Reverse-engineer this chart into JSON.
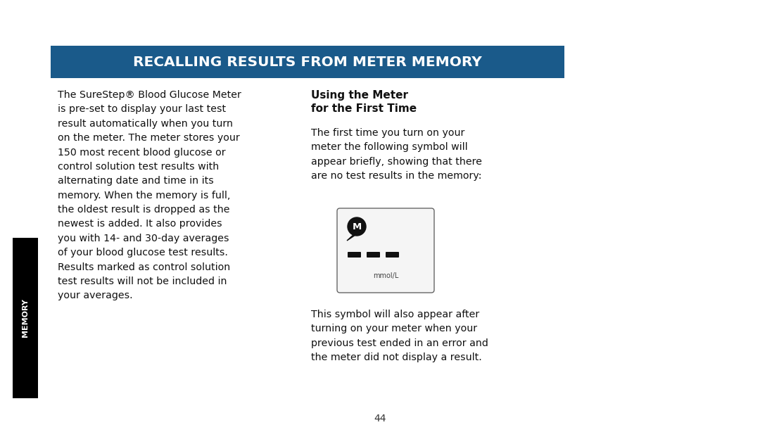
{
  "bg_color": "#ffffff",
  "header_bg": "#1a5a8a",
  "header_text": "RECALLING RESULTS FROM METER MEMORY",
  "header_text_color": "#ffffff",
  "header_font_size": 14.5,
  "left_col_text": "The SureStep® Blood Glucose Meter\nis pre-set to display your last test\nresult automatically when you turn\non the meter. The meter stores your\n150 most recent blood glucose or\ncontrol solution test results with\nalternating date and time in its\nmemory. When the memory is full,\nthe oldest result is dropped as the\nnewest is added. It also provides\nyou with 14- and 30-day averages\nof your blood glucose test results.\nResults marked as control solution\ntest results will not be included in\nyour averages.",
  "right_heading1": "Using the Meter",
  "right_heading2": "for the First Time",
  "right_body1": "The first time you turn on your\nmeter the following symbol will\nappear briefly, showing that there\nare no test results in the memory:",
  "right_body2": "This symbol will also appear after\nturning on your meter when your\nprevious test ended in an error and\nthe meter did not display a result.",
  "sidebar_text": "MEMORY",
  "sidebar_bg": "#000000",
  "sidebar_text_color": "#ffffff",
  "page_number": "44",
  "body_font_size": 10.2,
  "heading_font_size": 11.0
}
